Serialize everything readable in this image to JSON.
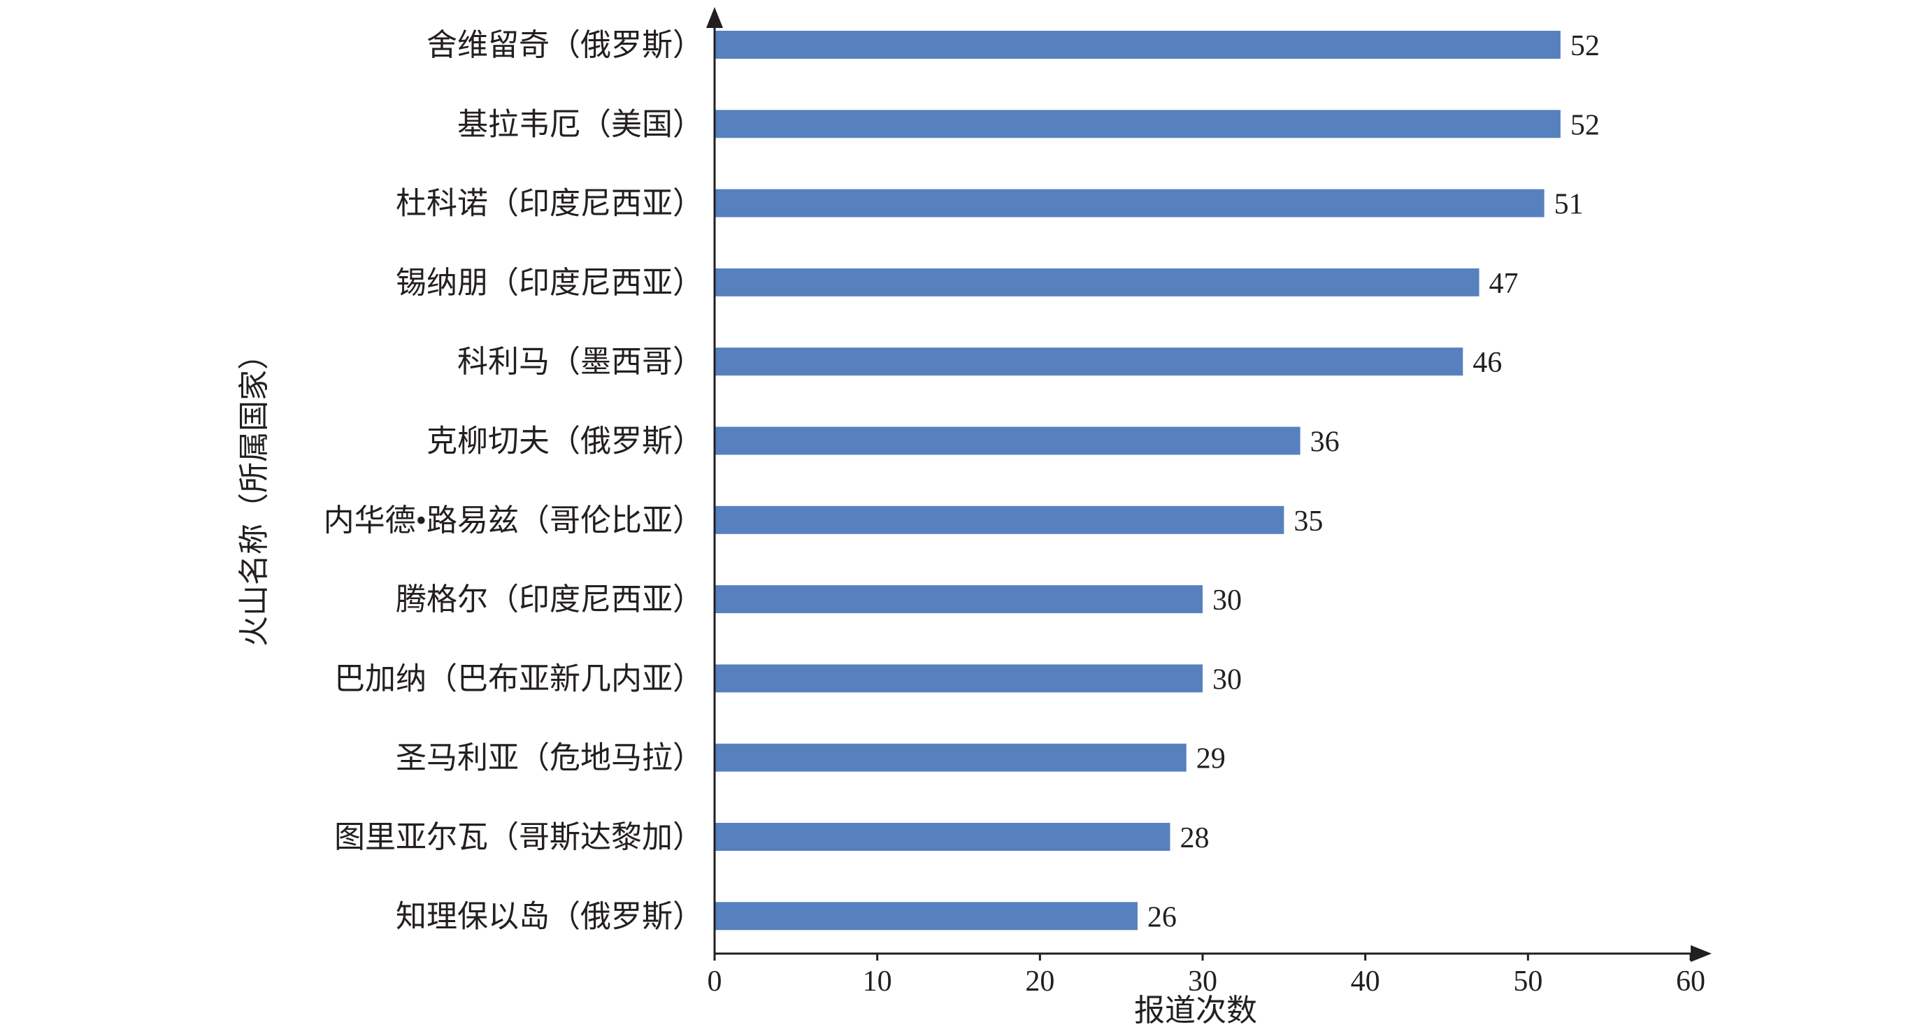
{
  "chart_data": {
    "type": "bar",
    "orientation": "horizontal",
    "categories": [
      "舍维留奇（俄罗斯）",
      "基拉韦厄（美国）",
      "杜科诺（印度尼西亚）",
      "锡纳朋（印度尼西亚）",
      "科利马（墨西哥）",
      "克柳切夫（俄罗斯）",
      "内华德•路易兹（哥伦比亚）",
      "腾格尔（印度尼西亚）",
      "巴加纳（巴布亚新几内亚）",
      "圣马利亚（危地马拉）",
      "图里亚尔瓦（哥斯达黎加）",
      "知理保以岛（俄罗斯）"
    ],
    "values": [
      52,
      52,
      51,
      47,
      46,
      36,
      35,
      30,
      30,
      29,
      28,
      26
    ],
    "xlabel": "报道次数",
    "ylabel": "火山名称（所属国家）",
    "xlim": [
      0,
      60
    ],
    "xticks": [
      0,
      10,
      20,
      30,
      40,
      50,
      60
    ],
    "data_labels": true,
    "grid": false,
    "legend": "none",
    "bar_color": "#5780bf",
    "axis_color": "#231f20"
  }
}
